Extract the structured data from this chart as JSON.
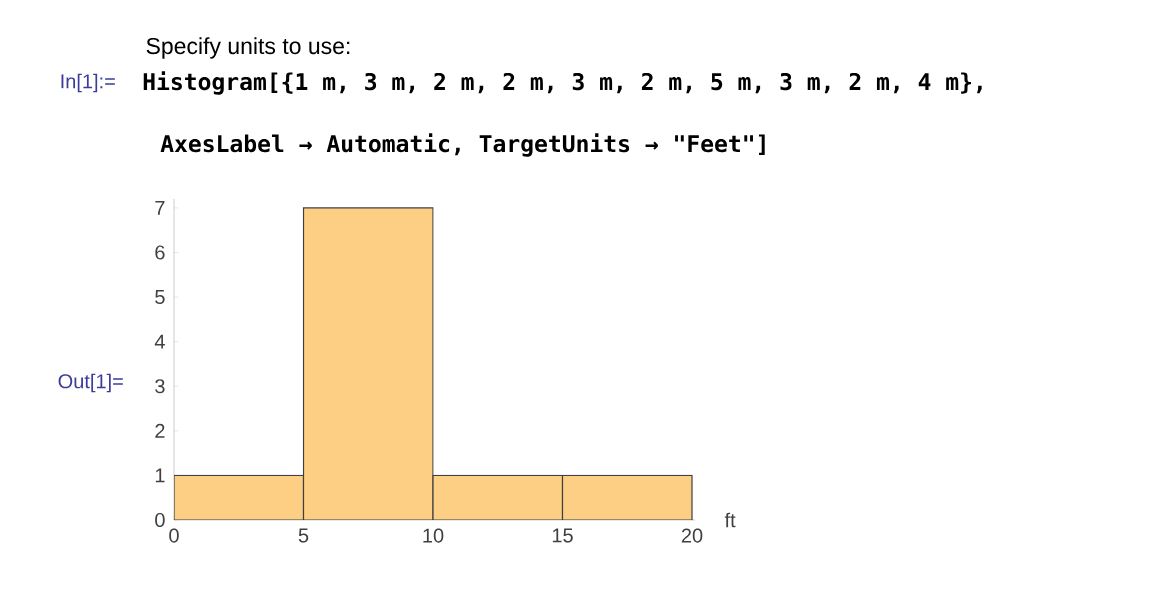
{
  "chart_data": {
    "type": "histogram",
    "title": "Specify units to use:",
    "annotations": [
      "In[1]:=",
      "Histogram[{1 m, 3 m, 2 m, 2 m, 3 m, 2 m, 5 m, 3 m, 2 m, 4 m},",
      "AxesLabel → Automatic, TargetUnits → \"Feet\"]",
      "Out[1]="
    ],
    "bins": [
      0,
      5,
      10,
      15,
      20
    ],
    "values": [
      1,
      7,
      1,
      1
    ],
    "color": "#fccf84",
    "xlabel": "ft",
    "xlim": [
      0,
      20
    ],
    "ylim": [
      0,
      7.2
    ],
    "xticks": [
      0,
      5,
      10,
      15,
      20
    ],
    "yticks": [
      0,
      1,
      2,
      3,
      4,
      5,
      6,
      7
    ],
    "grid": false
  }
}
